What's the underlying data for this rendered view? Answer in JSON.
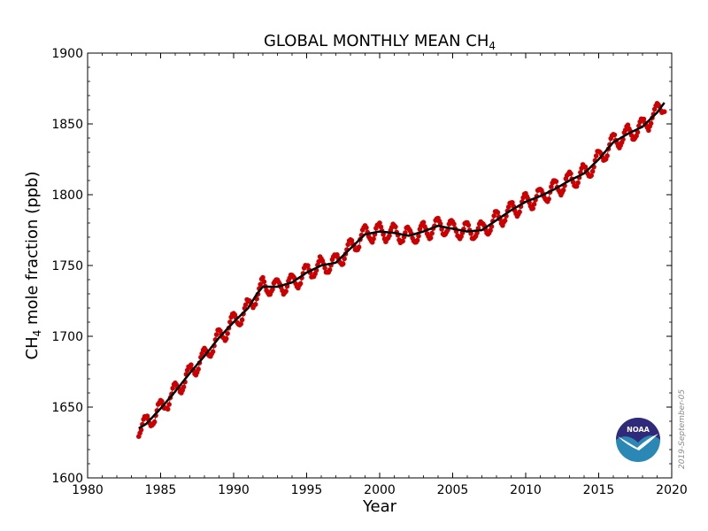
{
  "chart_data": {
    "type": "line",
    "title": "GLOBAL MONTHLY MEAN CH",
    "title_subscript": "4",
    "xlabel": "Year",
    "ylabel_main": "CH",
    "ylabel_subscript": "4",
    "ylabel_rest": " mole fraction (ppb)",
    "xlim": [
      1980,
      2020
    ],
    "ylim": [
      1600,
      1900
    ],
    "xticks": [
      1980,
      1985,
      1990,
      1995,
      2000,
      2005,
      2010,
      2015,
      2020
    ],
    "yticks": [
      1600,
      1650,
      1700,
      1750,
      1800,
      1850,
      1900
    ],
    "grid": false,
    "stamp": "2019-September-05",
    "logo": "NOAA",
    "series": [
      {
        "kind": "trend",
        "color": "#000000",
        "points": [
          [
            1983.5,
            1635
          ],
          [
            1984,
            1638
          ],
          [
            1985,
            1649
          ],
          [
            1986,
            1661
          ],
          [
            1987,
            1674
          ],
          [
            1988,
            1686
          ],
          [
            1989,
            1699
          ],
          [
            1990,
            1710
          ],
          [
            1991,
            1720
          ],
          [
            1991.6,
            1730
          ],
          [
            1992,
            1735
          ],
          [
            1993,
            1735
          ],
          [
            1994,
            1738
          ],
          [
            1995,
            1745
          ],
          [
            1996,
            1750
          ],
          [
            1997,
            1752
          ],
          [
            1998,
            1762
          ],
          [
            1999,
            1772
          ],
          [
            2000,
            1774
          ],
          [
            2001,
            1773
          ],
          [
            2002,
            1771
          ],
          [
            2003,
            1774
          ],
          [
            2004,
            1778
          ],
          [
            2005,
            1776
          ],
          [
            2006,
            1774
          ],
          [
            2007,
            1775
          ],
          [
            2008,
            1782
          ],
          [
            2009,
            1789
          ],
          [
            2010,
            1795
          ],
          [
            2011,
            1799
          ],
          [
            2012,
            1804
          ],
          [
            2013,
            1810
          ],
          [
            2014,
            1815
          ],
          [
            2015,
            1825
          ],
          [
            2016,
            1837
          ],
          [
            2017,
            1843
          ],
          [
            2018,
            1848
          ],
          [
            2019,
            1858
          ],
          [
            2019.5,
            1865
          ]
        ]
      },
      {
        "kind": "monthly",
        "color": "#cc0000",
        "seasonal_amplitude": 6,
        "noise": 2,
        "x_start": 1983.5,
        "x_end": 2019.5,
        "per_year": 12
      }
    ]
  }
}
